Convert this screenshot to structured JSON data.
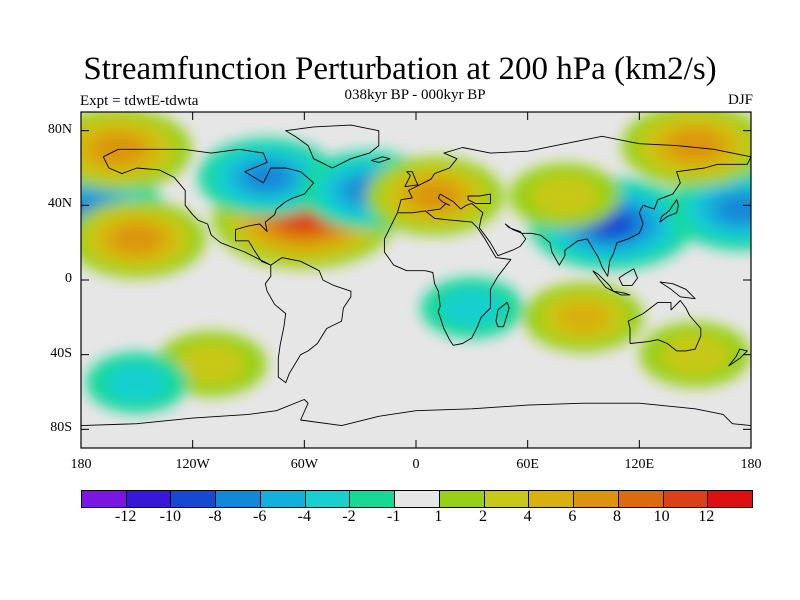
{
  "title": "Streamfunction Perturbation at 200 hPa (km2/s)",
  "experiment": "Expt = tdwtE-tdwta",
  "subtitle": "038kyr BP - 000kyr BP",
  "season": "DJF",
  "map": {
    "projection": "cylindrical equidistant",
    "lon_range": [
      -180,
      180
    ],
    "lat_range": [
      -90,
      90
    ],
    "background_color": "#e6e6e6",
    "coastline_color": "#000000"
  },
  "y_axis": {
    "ticks": [
      {
        "label": "80N",
        "lat": 80
      },
      {
        "label": "40N",
        "lat": 40
      },
      {
        "label": "0",
        "lat": 0
      },
      {
        "label": "40S",
        "lat": -40
      },
      {
        "label": "80S",
        "lat": -80
      }
    ]
  },
  "x_axis": {
    "ticks": [
      {
        "label": "180",
        "lon": -180
      },
      {
        "label": "120W",
        "lon": -120
      },
      {
        "label": "60W",
        "lon": -60
      },
      {
        "label": "0",
        "lon": 0
      },
      {
        "label": "60E",
        "lon": 60
      },
      {
        "label": "120E",
        "lon": 120
      },
      {
        "label": "180",
        "lon": 180
      }
    ]
  },
  "colorbar": {
    "colors": [
      "#7a16e0",
      "#3818d8",
      "#1648d0",
      "#1488d8",
      "#14b0dc",
      "#18d0d0",
      "#18d898",
      "#e6e6e6",
      "#98d018",
      "#c8c818",
      "#d8b010",
      "#dc9410",
      "#dc6a10",
      "#dc4018",
      "#dc1010"
    ],
    "labels": [
      "-12",
      "-10",
      "-8",
      "-6",
      "-4",
      "-2",
      "-1",
      "1",
      "2",
      "4",
      "6",
      "8",
      "10",
      "12"
    ]
  },
  "chart_data": {
    "type": "heatmap",
    "title": "Streamfunction Perturbation at 200 hPa (km2/s)",
    "subtitle": "038kyr BP - 000kyr BP",
    "season": "DJF",
    "contour_levels": [
      -12,
      -10,
      -8,
      -6,
      -4,
      -2,
      -1,
      1,
      2,
      4,
      6,
      8,
      10,
      12
    ],
    "features": [
      {
        "lon": -60,
        "lat": 33,
        "value": 11,
        "kind": "max"
      },
      {
        "lon": 105,
        "lat": 30,
        "value": -9,
        "kind": "min"
      },
      {
        "lon": -175,
        "lat": 38,
        "value": -7,
        "kind": "min"
      },
      {
        "lon": 175,
        "lat": 38,
        "value": -7,
        "kind": "min"
      },
      {
        "lon": -80,
        "lat": 55,
        "value": -6,
        "kind": "min"
      },
      {
        "lon": -25,
        "lat": 48,
        "value": -6,
        "kind": "min"
      },
      {
        "lon": 10,
        "lat": 45,
        "value": 6,
        "kind": "max"
      },
      {
        "lon": -150,
        "lat": 22,
        "value": 6,
        "kind": "max"
      },
      {
        "lon": -160,
        "lat": 70,
        "value": 7,
        "kind": "max"
      },
      {
        "lon": 150,
        "lat": 72,
        "value": 7,
        "kind": "max"
      },
      {
        "lon": 80,
        "lat": 45,
        "value": 3,
        "kind": "max"
      },
      {
        "lon": 90,
        "lat": -20,
        "value": 4,
        "kind": "max"
      },
      {
        "lon": -110,
        "lat": -45,
        "value": 3,
        "kind": "max"
      },
      {
        "lon": 150,
        "lat": -40,
        "value": 3,
        "kind": "max"
      },
      {
        "lon": 30,
        "lat": -15,
        "value": -2,
        "kind": "min"
      },
      {
        "lon": -150,
        "lat": -55,
        "value": -2,
        "kind": "min"
      }
    ]
  }
}
